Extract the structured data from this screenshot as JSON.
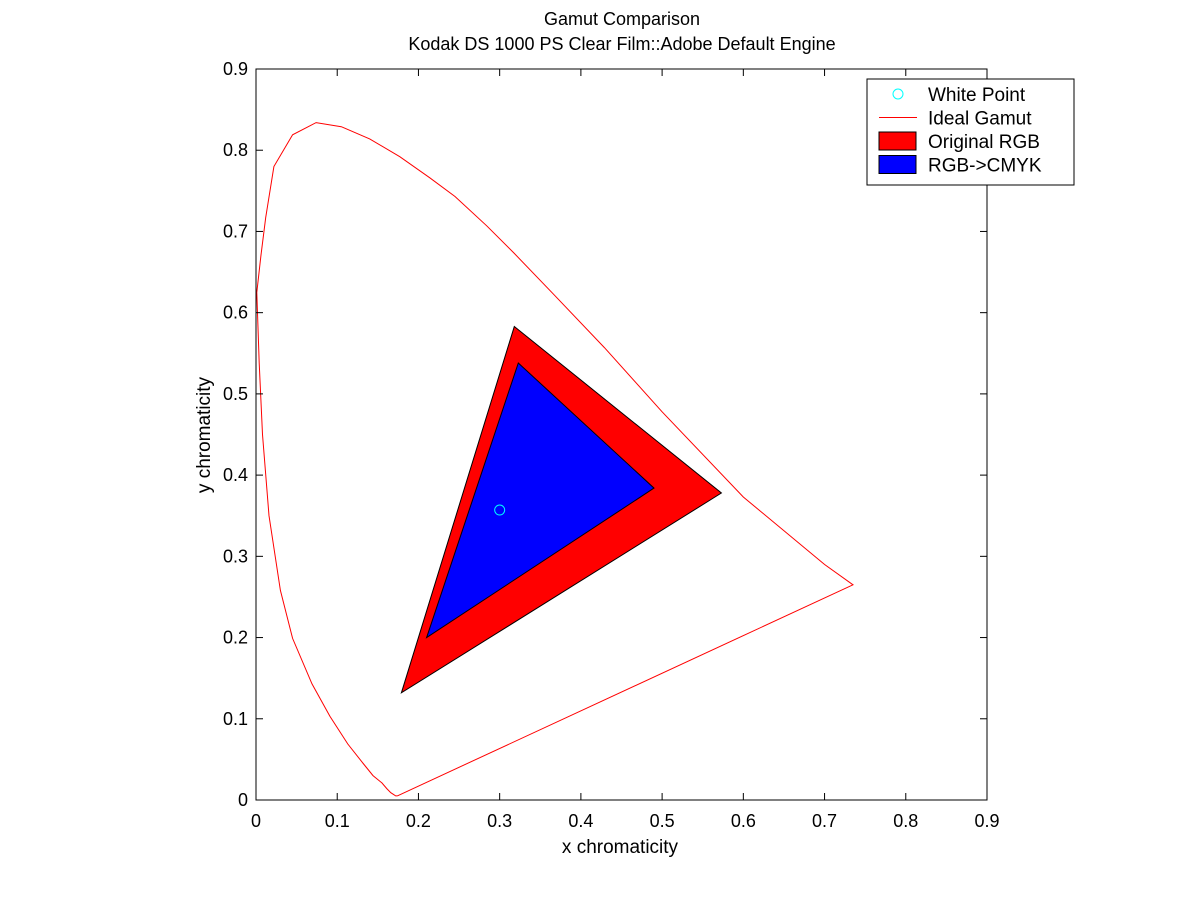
{
  "chart_data": {
    "type": "area",
    "title": "Gamut Comparison",
    "subtitle": "Kodak DS 1000 PS Clear Film::Adobe Default Engine",
    "xlabel": "x chromaticity",
    "ylabel": "y chromaticity",
    "xlim": [
      0,
      0.9
    ],
    "ylim": [
      0,
      0.9
    ],
    "xticks": [
      0,
      0.1,
      0.2,
      0.3,
      0.4,
      0.5,
      0.6,
      0.7,
      0.8,
      0.9
    ],
    "yticks": [
      0,
      0.1,
      0.2,
      0.3,
      0.4,
      0.5,
      0.6,
      0.7,
      0.8,
      0.9
    ],
    "xtick_labels": [
      "0",
      "0.1",
      "0.2",
      "0.3",
      "0.4",
      "0.5",
      "0.6",
      "0.7",
      "0.8",
      "0.9"
    ],
    "ytick_labels": [
      "0",
      "0.1",
      "0.2",
      "0.3",
      "0.4",
      "0.5",
      "0.6",
      "0.7",
      "0.8",
      "0.9"
    ],
    "grid": false,
    "legend_position": "top-right",
    "series": [
      {
        "name": "White Point",
        "kind": "marker",
        "color": "#00ffff",
        "points": [
          [
            0.3,
            0.357
          ]
        ]
      },
      {
        "name": "Ideal Gamut",
        "kind": "line",
        "color": "#ff0000",
        "points": [
          [
            0.174,
            0.005
          ],
          [
            0.172,
            0.005
          ],
          [
            0.169,
            0.007
          ],
          [
            0.166,
            0.009
          ],
          [
            0.161,
            0.014
          ],
          [
            0.155,
            0.021
          ],
          [
            0.144,
            0.03
          ],
          [
            0.132,
            0.045
          ],
          [
            0.113,
            0.069
          ],
          [
            0.091,
            0.103
          ],
          [
            0.069,
            0.143
          ],
          [
            0.045,
            0.199
          ],
          [
            0.03,
            0.258
          ],
          [
            0.016,
            0.35
          ],
          [
            0.008,
            0.45
          ],
          [
            0.004,
            0.538
          ],
          [
            0.001,
            0.625
          ],
          [
            0.006,
            0.67
          ],
          [
            0.012,
            0.717
          ],
          [
            0.022,
            0.78
          ],
          [
            0.045,
            0.819
          ],
          [
            0.074,
            0.834
          ],
          [
            0.105,
            0.829
          ],
          [
            0.14,
            0.814
          ],
          [
            0.177,
            0.792
          ],
          [
            0.214,
            0.766
          ],
          [
            0.245,
            0.743
          ],
          [
            0.284,
            0.707
          ],
          [
            0.318,
            0.673
          ],
          [
            0.367,
            0.622
          ],
          [
            0.429,
            0.557
          ],
          [
            0.5,
            0.478
          ],
          [
            0.6,
            0.373
          ],
          [
            0.7,
            0.29
          ],
          [
            0.735,
            0.265
          ],
          [
            0.174,
            0.005
          ]
        ]
      },
      {
        "name": "Original RGB",
        "kind": "polygon",
        "color": "#ff0000",
        "points": [
          [
            0.318,
            0.583
          ],
          [
            0.573,
            0.378
          ],
          [
            0.179,
            0.132
          ]
        ]
      },
      {
        "name": "RGB->CMYK",
        "kind": "polygon",
        "color": "#0000ff",
        "points": [
          [
            0.323,
            0.538
          ],
          [
            0.49,
            0.384
          ],
          [
            0.21,
            0.2
          ]
        ]
      }
    ]
  }
}
